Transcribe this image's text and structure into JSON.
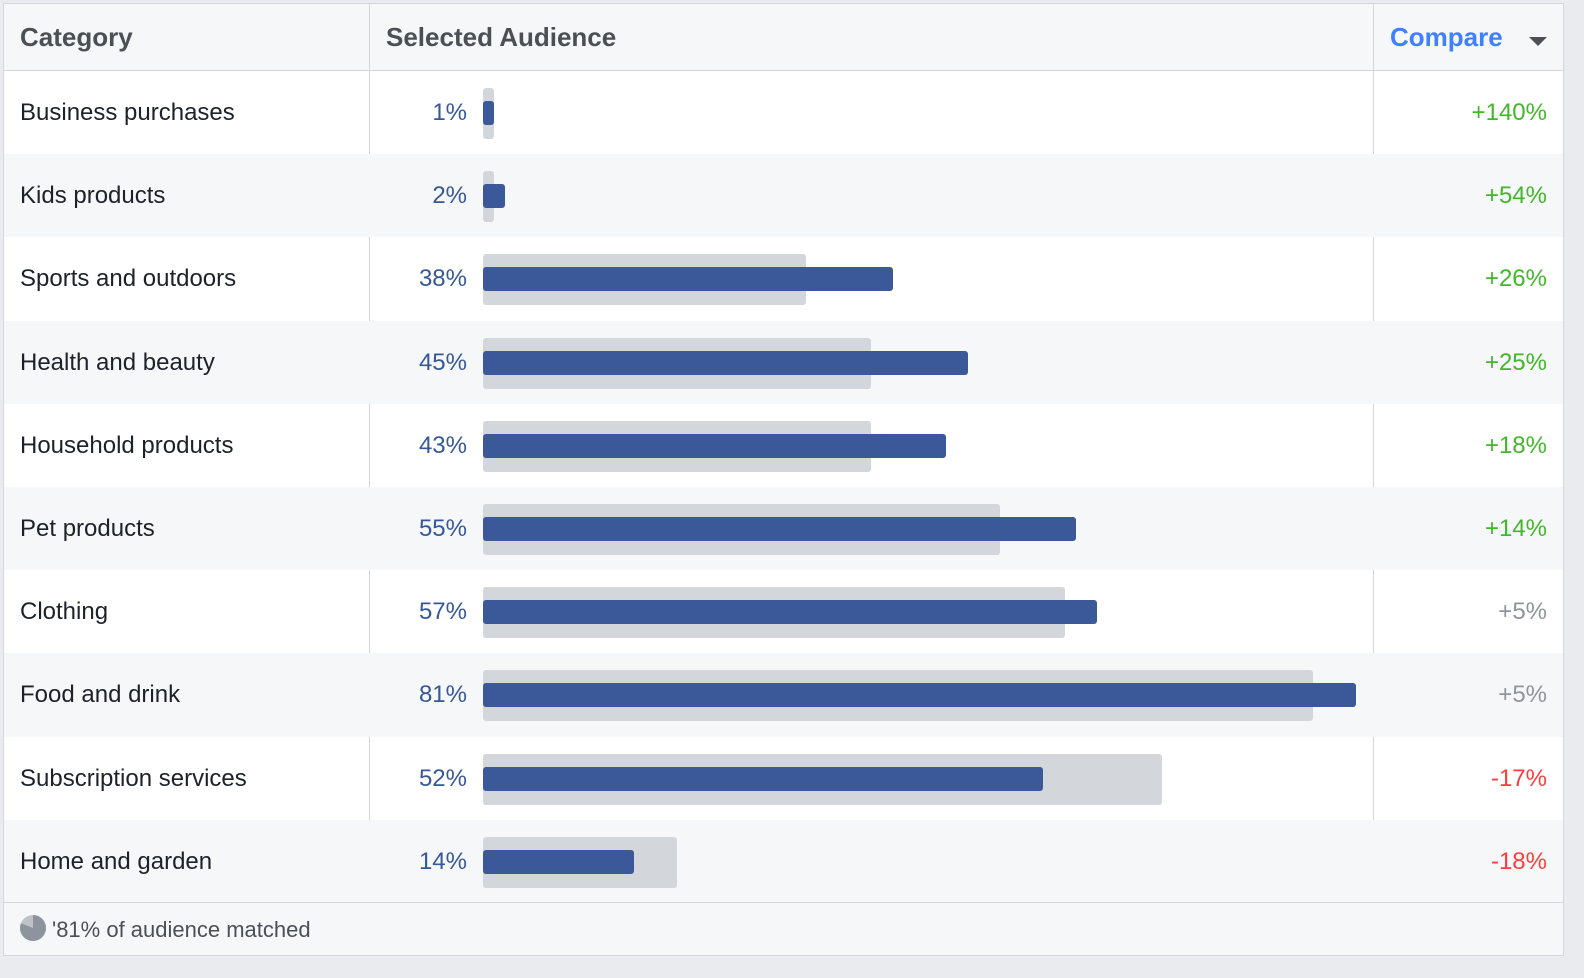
{
  "header": {
    "category_label": "Category",
    "selected_label": "Selected Audience",
    "compare_label": "Compare"
  },
  "rows": [
    {
      "category": "Business purchases",
      "percent": "1%",
      "selected": 1,
      "benchmark": 1,
      "compare": "+140%",
      "trend": "pos"
    },
    {
      "category": "Kids products",
      "percent": "2%",
      "selected": 2,
      "benchmark": 1,
      "compare": "+54%",
      "trend": "pos"
    },
    {
      "category": "Sports and outdoors",
      "percent": "38%",
      "selected": 38,
      "benchmark": 30,
      "compare": "+26%",
      "trend": "pos"
    },
    {
      "category": "Health and beauty",
      "percent": "45%",
      "selected": 45,
      "benchmark": 36,
      "compare": "+25%",
      "trend": "pos"
    },
    {
      "category": "Household products",
      "percent": "43%",
      "selected": 43,
      "benchmark": 36,
      "compare": "+18%",
      "trend": "pos"
    },
    {
      "category": "Pet products",
      "percent": "55%",
      "selected": 55,
      "benchmark": 48,
      "compare": "+14%",
      "trend": "pos"
    },
    {
      "category": "Clothing",
      "percent": "57%",
      "selected": 57,
      "benchmark": 54,
      "compare": "+5%",
      "trend": "neu"
    },
    {
      "category": "Food and drink",
      "percent": "81%",
      "selected": 81,
      "benchmark": 77,
      "compare": "+5%",
      "trend": "neu"
    },
    {
      "category": "Subscription services",
      "percent": "52%",
      "selected": 52,
      "benchmark": 63,
      "compare": "-17%",
      "trend": "neg"
    },
    {
      "category": "Home and garden",
      "percent": "14%",
      "selected": 14,
      "benchmark": 18,
      "compare": "-18%",
      "trend": "neg"
    }
  ],
  "scale_max_percent": 81,
  "footer": {
    "matched_text": "'81% of audience matched",
    "matched_fraction": 0.81
  },
  "colors": {
    "selected_bar": "#3b5998",
    "benchmark_bar": "#d3d6db",
    "positive": "#42b72a",
    "neutral": "#90949c",
    "negative": "#fa3e3e",
    "accent": "#4080ff"
  }
}
